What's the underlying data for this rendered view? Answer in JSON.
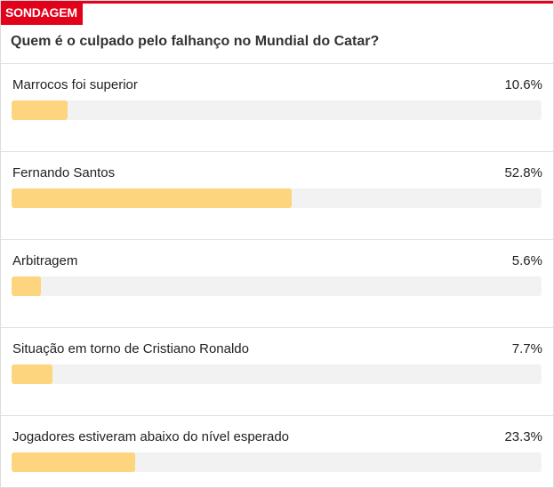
{
  "poll": {
    "badge": "SONDAGEM",
    "question": "Quem é o culpado pelo falhanço no Mundial do Catar?",
    "options": [
      {
        "label": "Marrocos foi superior",
        "value_text": "10.6%",
        "percent": 10.6
      },
      {
        "label": "Fernando Santos",
        "value_text": "52.8%",
        "percent": 52.8
      },
      {
        "label": "Arbitragem",
        "value_text": "5.6%",
        "percent": 5.6
      },
      {
        "label": "Situação em torno de Cristiano Ronaldo",
        "value_text": "7.7%",
        "percent": 7.7
      },
      {
        "label": "Jogadores estiveram abaixo do nível esperado",
        "value_text": "23.3%",
        "percent": 23.3
      }
    ]
  },
  "colors": {
    "accent": "#e3001b",
    "bar_fill": "#fcd57e",
    "bar_track": "#f2f2f2"
  }
}
